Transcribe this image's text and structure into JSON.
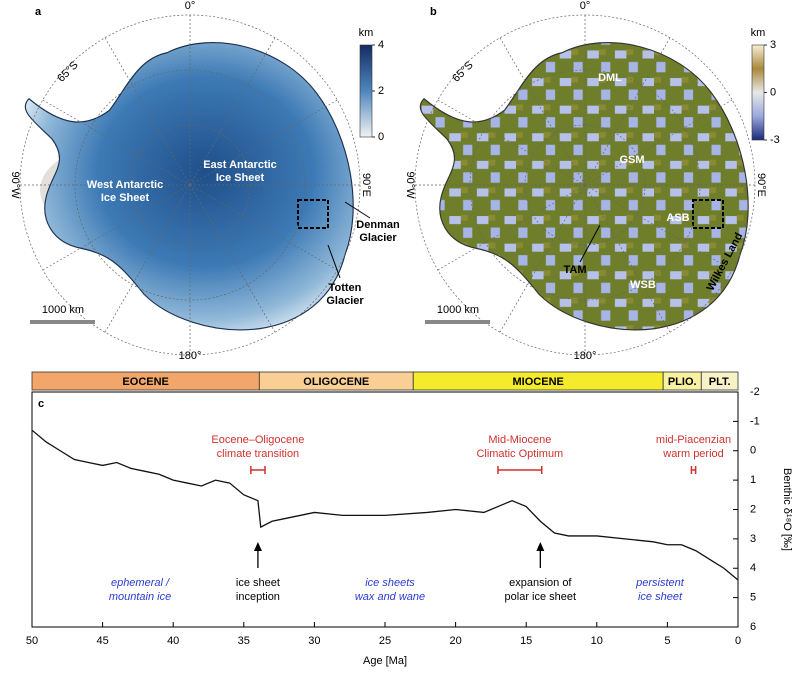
{
  "maps": [
    {
      "panel": "a",
      "colorbar": {
        "label": "km",
        "range": [
          0,
          4
        ],
        "ticks": [
          4,
          2,
          0
        ]
      },
      "graticule": {
        "top": "0°",
        "lat": "65°S",
        "left": "90°W",
        "right": "90°E",
        "bottom": "180°"
      },
      "labels": [
        [
          "West Antarctic",
          "Ice Sheet"
        ],
        [
          "East Antarctic",
          "Ice Sheet"
        ],
        [
          "Denman",
          "Glacier"
        ],
        [
          "Totten",
          "Glacier"
        ]
      ],
      "scale": "1000 km"
    },
    {
      "panel": "b",
      "colorbar": {
        "label": "km",
        "range": [
          -3,
          3
        ],
        "ticks": [
          3,
          0,
          -3
        ]
      },
      "graticule": {
        "top": "0°",
        "lat": "65°S",
        "left": "90°W",
        "right": "90°E",
        "bottom": "180°"
      },
      "labels": [
        [
          "DML"
        ],
        [
          "GSM"
        ],
        [
          "ASB"
        ],
        [
          "WSB"
        ],
        [
          "TAM"
        ],
        [
          "Wilkes Land"
        ]
      ],
      "scale": "1000 km"
    }
  ],
  "chart_data": {
    "type": "line",
    "panel": "c",
    "xlabel": "Age [Ma]",
    "ylabel": "Benthic δ¹⁸O [‰]",
    "xlim": [
      50,
      0
    ],
    "xticks": [
      50,
      45,
      40,
      35,
      30,
      25,
      20,
      15,
      10,
      5,
      0
    ],
    "ylim": [
      6,
      -2
    ],
    "yticks": [
      -2,
      -1,
      0,
      1,
      2,
      3,
      4,
      5,
      6
    ],
    "epochs": [
      {
        "name": "EOCENE",
        "span": [
          50,
          33.9
        ],
        "color": "#f2a66a"
      },
      {
        "name": "OLIGOCENE",
        "span": [
          33.9,
          23
        ],
        "color": "#f9cf95"
      },
      {
        "name": "MIOCENE",
        "span": [
          23,
          5.3
        ],
        "color": "#f4ec2a"
      },
      {
        "name": "PLIO.",
        "span": [
          5.3,
          2.6
        ],
        "color": "#f7f1a0"
      },
      {
        "name": "PLT.",
        "span": [
          2.6,
          0
        ],
        "color": "#f8f3c6"
      }
    ],
    "series": [
      {
        "color": "#111111",
        "x": [
          50,
          49,
          48,
          47,
          46,
          45,
          44,
          43,
          42,
          41,
          40,
          39,
          38,
          37,
          36,
          35,
          34,
          33.8,
          33,
          32,
          30,
          28,
          25,
          22,
          20,
          18,
          17,
          16,
          15,
          14,
          13,
          12,
          10,
          8,
          6,
          5,
          4,
          3,
          2,
          1,
          0
        ],
        "values": [
          -0.7,
          -0.3,
          0.0,
          0.3,
          0.4,
          0.5,
          0.4,
          0.6,
          0.7,
          0.8,
          1.0,
          1.1,
          1.2,
          1.0,
          1.1,
          1.5,
          1.7,
          2.6,
          2.4,
          2.3,
          2.1,
          2.2,
          2.2,
          2.1,
          2.0,
          2.1,
          1.9,
          1.7,
          1.9,
          2.4,
          2.8,
          2.9,
          2.9,
          3.0,
          3.1,
          3.2,
          3.2,
          3.4,
          3.7,
          4.0,
          4.4
        ]
      }
    ],
    "events": [
      {
        "lines": [
          "Eocene–Oligocene",
          "climate transition"
        ],
        "range": [
          34.5,
          33.5
        ],
        "color": "#d0312d"
      },
      {
        "lines": [
          "Mid-Miocene",
          "Climatic Optimum"
        ],
        "range": [
          17,
          13.9
        ],
        "color": "#d0312d"
      },
      {
        "lines": [
          "mid-Piacenzian",
          "warm period"
        ],
        "range": [
          3.3,
          3.0
        ],
        "color": "#d0312d"
      }
    ],
    "arrows": [
      {
        "x": 34,
        "lines": [
          "ice sheet",
          "inception"
        ]
      },
      {
        "x": 14,
        "lines": [
          "expansion of",
          "polar ice sheet"
        ]
      }
    ],
    "regimes": [
      {
        "lines": [
          "ephemeral /",
          "mountain ice"
        ]
      },
      {
        "lines": [
          "ice sheets",
          "wax and wane"
        ]
      },
      {
        "lines": [
          "persistent",
          "ice sheet"
        ]
      }
    ],
    "regime_color": "#2b3bd0"
  }
}
